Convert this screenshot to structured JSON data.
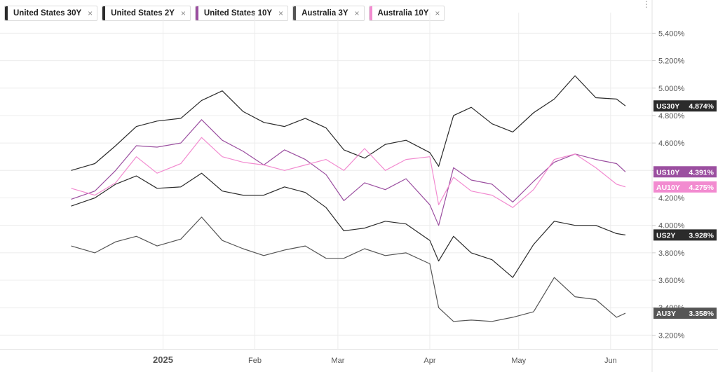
{
  "legend": [
    {
      "label": "United States 30Y",
      "color": "#2b2b2b"
    },
    {
      "label": "United States 2Y",
      "color": "#2b2b2b"
    },
    {
      "label": "United States 10Y",
      "color": "#9b4fa0"
    },
    {
      "label": "Australia 3Y",
      "color": "#555555"
    },
    {
      "label": "Australia 10Y",
      "color": "#f28bd0"
    }
  ],
  "close_glyph": "×",
  "more_glyph": "⋮",
  "chart_data": {
    "type": "line",
    "x_ticks": [
      "2025",
      "Feb",
      "Mar",
      "Apr",
      "May",
      "Jun"
    ],
    "y_ticks": [
      "5.400%",
      "5.200%",
      "5.000%",
      "4.800%",
      "4.600%",
      "4.400%",
      "4.200%",
      "4.000%",
      "3.800%",
      "3.600%",
      "3.400%",
      "3.200%"
    ],
    "y_tick_values": [
      5.4,
      5.2,
      5.0,
      4.8,
      4.6,
      4.4,
      4.2,
      4.0,
      3.8,
      3.6,
      3.4,
      3.2
    ],
    "ylim": [
      3.1,
      5.55
    ],
    "grid": true,
    "series": [
      {
        "name": "United States 30Y",
        "tag": "US30Y",
        "last": "4.874%",
        "color": "#2b2b2b",
        "x": [
          "2024-12-01",
          "2024-12-09",
          "2024-12-16",
          "2024-12-23",
          "2024-12-30",
          "2025-01-07",
          "2025-01-14",
          "2025-01-21",
          "2025-01-28",
          "2025-02-04",
          "2025-02-11",
          "2025-02-18",
          "2025-02-25",
          "2025-03-03",
          "2025-03-10",
          "2025-03-17",
          "2025-03-24",
          "2025-04-01",
          "2025-04-04",
          "2025-04-09",
          "2025-04-15",
          "2025-04-22",
          "2025-04-29",
          "2025-05-06",
          "2025-05-13",
          "2025-05-20",
          "2025-05-27",
          "2025-06-03",
          "2025-06-06"
        ],
        "y": [
          4.4,
          4.45,
          4.58,
          4.72,
          4.76,
          4.78,
          4.91,
          4.98,
          4.83,
          4.75,
          4.72,
          4.78,
          4.71,
          4.55,
          4.49,
          4.59,
          4.62,
          4.53,
          4.43,
          4.8,
          4.86,
          4.74,
          4.68,
          4.82,
          4.92,
          5.09,
          4.93,
          4.92,
          4.87
        ]
      },
      {
        "name": "United States 10Y",
        "tag": "US10Y",
        "last": "4.391%",
        "color": "#9b4fa0",
        "x": [
          "2024-12-01",
          "2024-12-09",
          "2024-12-16",
          "2024-12-23",
          "2024-12-30",
          "2025-01-07",
          "2025-01-14",
          "2025-01-21",
          "2025-01-28",
          "2025-02-04",
          "2025-02-11",
          "2025-02-18",
          "2025-02-25",
          "2025-03-03",
          "2025-03-10",
          "2025-03-17",
          "2025-03-24",
          "2025-04-01",
          "2025-04-04",
          "2025-04-09",
          "2025-04-15",
          "2025-04-22",
          "2025-04-29",
          "2025-05-06",
          "2025-05-13",
          "2025-05-20",
          "2025-05-27",
          "2025-06-03",
          "2025-06-06"
        ],
        "y": [
          4.19,
          4.25,
          4.4,
          4.58,
          4.57,
          4.6,
          4.77,
          4.62,
          4.54,
          4.44,
          4.55,
          4.48,
          4.37,
          4.18,
          4.31,
          4.26,
          4.34,
          4.15,
          4.0,
          4.42,
          4.33,
          4.3,
          4.17,
          4.32,
          4.46,
          4.52,
          4.48,
          4.45,
          4.39
        ]
      },
      {
        "name": "Australia 10Y",
        "tag": "AU10Y",
        "last": "4.275%",
        "color": "#f28bd0",
        "x": [
          "2024-12-01",
          "2024-12-09",
          "2024-12-16",
          "2024-12-23",
          "2024-12-30",
          "2025-01-07",
          "2025-01-14",
          "2025-01-21",
          "2025-01-28",
          "2025-02-04",
          "2025-02-11",
          "2025-02-18",
          "2025-02-25",
          "2025-03-03",
          "2025-03-10",
          "2025-03-17",
          "2025-03-24",
          "2025-04-01",
          "2025-04-04",
          "2025-04-09",
          "2025-04-15",
          "2025-04-22",
          "2025-04-29",
          "2025-05-06",
          "2025-05-13",
          "2025-05-20",
          "2025-05-27",
          "2025-06-03",
          "2025-06-06"
        ],
        "y": [
          4.27,
          4.22,
          4.31,
          4.5,
          4.38,
          4.45,
          4.64,
          4.5,
          4.46,
          4.44,
          4.4,
          4.44,
          4.48,
          4.4,
          4.56,
          4.4,
          4.48,
          4.5,
          4.15,
          4.35,
          4.25,
          4.22,
          4.13,
          4.26,
          4.48,
          4.52,
          4.42,
          4.3,
          4.28
        ]
      },
      {
        "name": "United States 2Y",
        "tag": "US2Y",
        "last": "3.928%",
        "color": "#2b2b2b",
        "x": [
          "2024-12-01",
          "2024-12-09",
          "2024-12-16",
          "2024-12-23",
          "2024-12-30",
          "2025-01-07",
          "2025-01-14",
          "2025-01-21",
          "2025-01-28",
          "2025-02-04",
          "2025-02-11",
          "2025-02-18",
          "2025-02-25",
          "2025-03-03",
          "2025-03-10",
          "2025-03-17",
          "2025-03-24",
          "2025-04-01",
          "2025-04-04",
          "2025-04-09",
          "2025-04-15",
          "2025-04-22",
          "2025-04-29",
          "2025-05-06",
          "2025-05-13",
          "2025-05-20",
          "2025-05-27",
          "2025-06-03",
          "2025-06-06"
        ],
        "y": [
          4.14,
          4.2,
          4.3,
          4.36,
          4.27,
          4.28,
          4.38,
          4.25,
          4.22,
          4.22,
          4.28,
          4.24,
          4.13,
          3.96,
          3.98,
          4.03,
          4.01,
          3.89,
          3.74,
          3.92,
          3.8,
          3.75,
          3.62,
          3.86,
          4.03,
          4.0,
          4.0,
          3.94,
          3.93
        ]
      },
      {
        "name": "Australia 3Y",
        "tag": "AU3Y",
        "last": "3.358%",
        "color": "#555555",
        "x": [
          "2024-12-01",
          "2024-12-09",
          "2024-12-16",
          "2024-12-23",
          "2024-12-30",
          "2025-01-07",
          "2025-01-14",
          "2025-01-21",
          "2025-01-28",
          "2025-02-04",
          "2025-02-11",
          "2025-02-18",
          "2025-02-25",
          "2025-03-03",
          "2025-03-10",
          "2025-03-17",
          "2025-03-24",
          "2025-04-01",
          "2025-04-04",
          "2025-04-09",
          "2025-04-15",
          "2025-04-22",
          "2025-04-29",
          "2025-05-06",
          "2025-05-13",
          "2025-05-20",
          "2025-05-27",
          "2025-06-03",
          "2025-06-06"
        ],
        "y": [
          3.85,
          3.8,
          3.88,
          3.92,
          3.85,
          3.9,
          4.06,
          3.89,
          3.83,
          3.78,
          3.82,
          3.85,
          3.76,
          3.76,
          3.83,
          3.78,
          3.8,
          3.72,
          3.4,
          3.3,
          3.31,
          3.3,
          3.33,
          3.37,
          3.62,
          3.48,
          3.46,
          3.33,
          3.36
        ]
      }
    ]
  }
}
